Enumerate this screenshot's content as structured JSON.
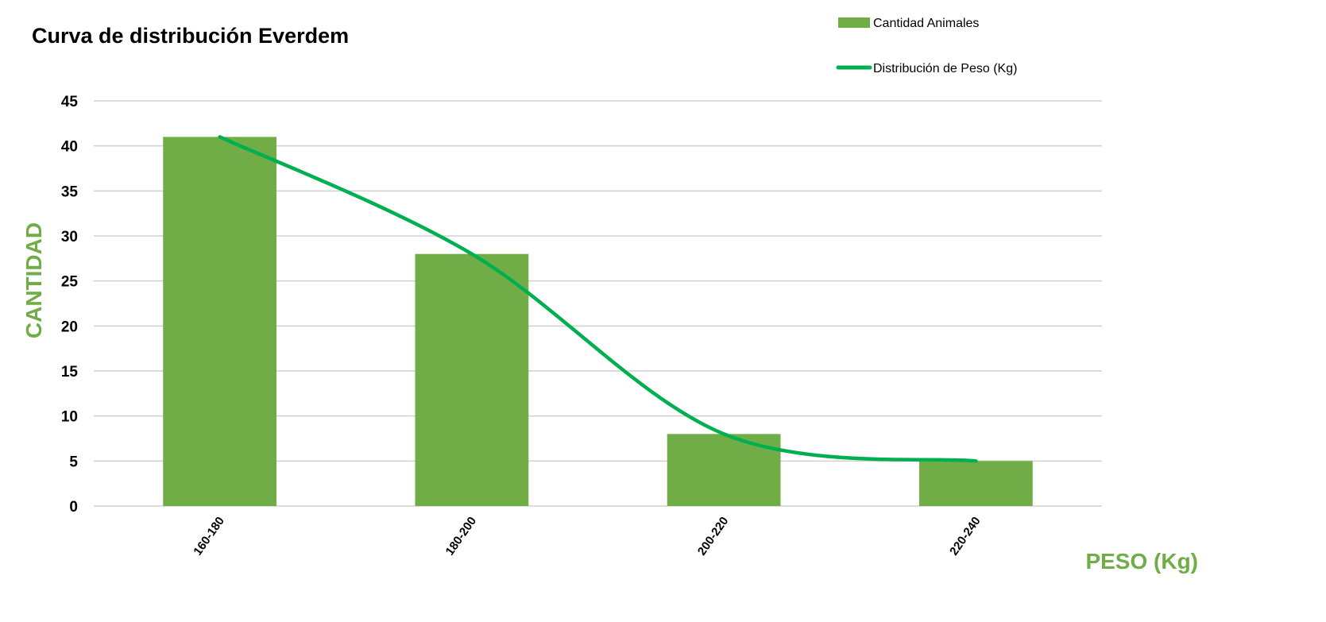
{
  "chart_data": {
    "type": "bar",
    "title": "Curva de distribución Everdem",
    "xlabel": "PESO (Kg)",
    "ylabel": "CANTIDAD",
    "categories": [
      "160-180",
      "180-200",
      "200-220",
      "220-240"
    ],
    "series": [
      {
        "name": "Cantidad Animales",
        "type": "bar",
        "values": [
          41,
          28,
          8,
          5
        ],
        "color": "#70AD47"
      },
      {
        "name": "Distribución de Peso (Kg)",
        "type": "line",
        "smooth": true,
        "values": [
          41,
          28,
          8,
          5
        ],
        "color": "#00B050"
      }
    ],
    "ylim": [
      0,
      45
    ],
    "yticks": [
      0,
      5,
      10,
      15,
      20,
      25,
      30,
      35,
      40,
      45
    ],
    "grid": true,
    "legend": "top-right",
    "axis_label_color": "#70AD47"
  }
}
